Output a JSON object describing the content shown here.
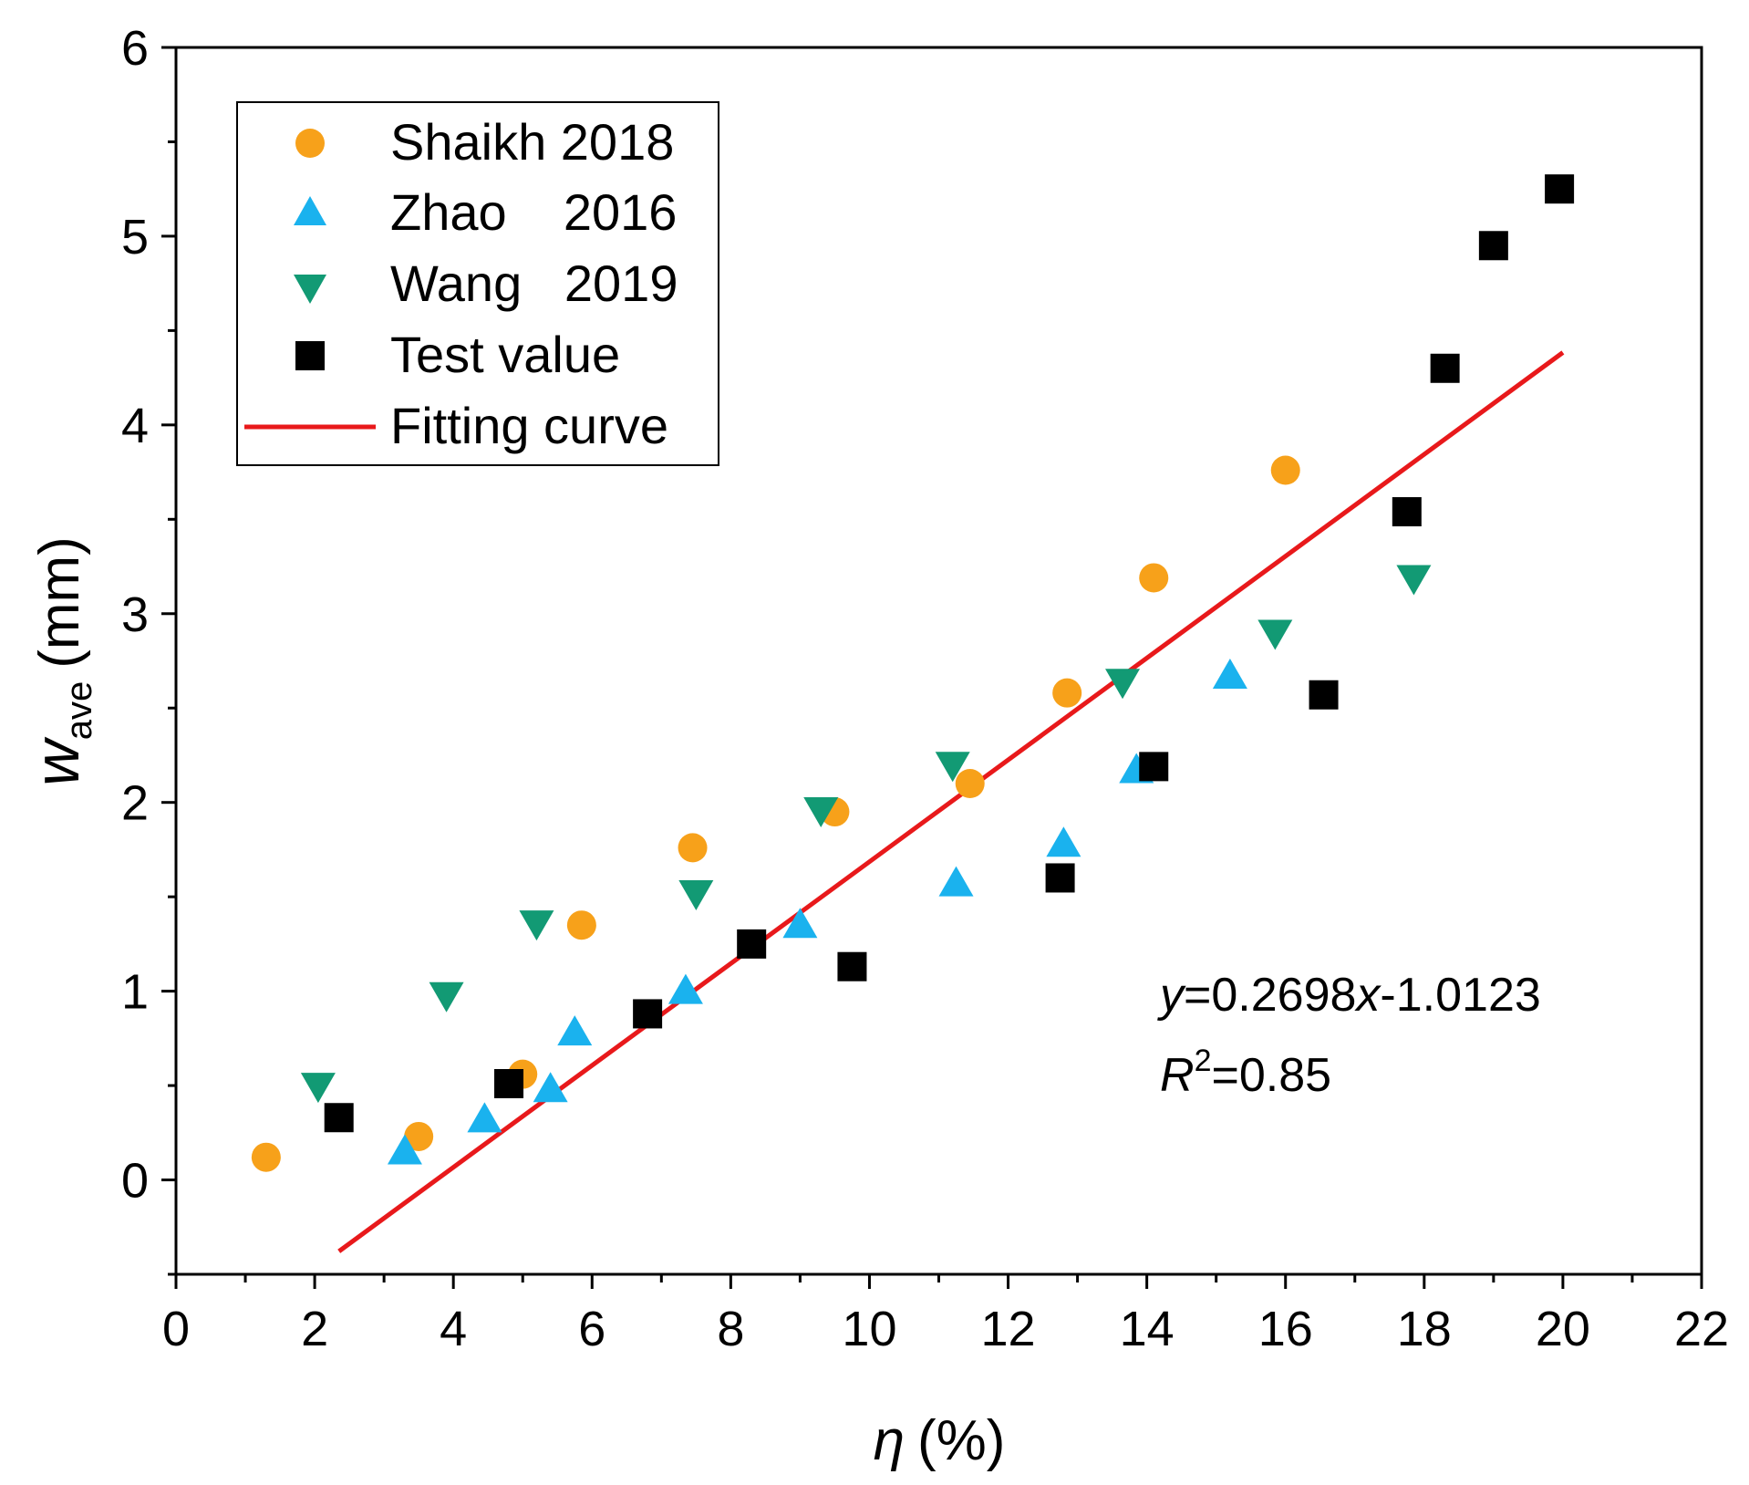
{
  "chart_data": {
    "type": "scatter",
    "xlabel": {
      "symbol": "η",
      "unit": "(%)"
    },
    "ylabel": {
      "symbol": "w",
      "subscript": "ave",
      "unit": "(mm)"
    },
    "xlim": [
      0,
      22
    ],
    "ylim": [
      -0.5,
      6
    ],
    "x_ticks": [
      0,
      2,
      4,
      6,
      8,
      10,
      12,
      14,
      16,
      18,
      20,
      22
    ],
    "y_ticks": [
      0,
      1,
      2,
      3,
      4,
      5,
      6
    ],
    "x_tick_labels": [
      "0",
      "2",
      "4",
      "6",
      "8",
      "10",
      "12",
      "14",
      "16",
      "18",
      "20",
      "22"
    ],
    "y_tick_labels": [
      "0",
      "1",
      "2",
      "3",
      "4",
      "5",
      "6"
    ],
    "legend_position": "top-left",
    "series": [
      {
        "id": "shaikh",
        "name": "Shaikh 2018",
        "marker": "circle",
        "color": "#F7A11A",
        "points": [
          [
            1.3,
            0.12
          ],
          [
            3.5,
            0.23
          ],
          [
            5.0,
            0.56
          ],
          [
            5.85,
            1.35
          ],
          [
            7.45,
            1.76
          ],
          [
            9.5,
            1.95
          ],
          [
            11.45,
            2.1
          ],
          [
            12.85,
            2.58
          ],
          [
            14.1,
            3.19
          ],
          [
            16.0,
            3.76
          ]
        ]
      },
      {
        "id": "zhao",
        "name": "Zhao    2016",
        "marker": "triangle-up",
        "color": "#1AB2EE",
        "points": [
          [
            3.3,
            0.15
          ],
          [
            4.45,
            0.32
          ],
          [
            5.4,
            0.48
          ],
          [
            5.75,
            0.78
          ],
          [
            7.35,
            1.0
          ],
          [
            9.0,
            1.35
          ],
          [
            11.25,
            1.57
          ],
          [
            12.8,
            1.78
          ],
          [
            13.85,
            2.17
          ],
          [
            15.2,
            2.67
          ]
        ]
      },
      {
        "id": "wang",
        "name": "Wang   2019",
        "marker": "triangle-down",
        "color": "#129A74",
        "points": [
          [
            2.05,
            0.5
          ],
          [
            3.9,
            0.98
          ],
          [
            5.2,
            1.36
          ],
          [
            7.5,
            1.52
          ],
          [
            9.3,
            1.96
          ],
          [
            11.2,
            2.2
          ],
          [
            13.65,
            2.64
          ],
          [
            15.85,
            2.9
          ],
          [
            17.85,
            3.19
          ]
        ]
      },
      {
        "id": "test",
        "name": "Test value",
        "marker": "square",
        "color": "#000000",
        "points": [
          [
            2.35,
            0.33
          ],
          [
            4.8,
            0.51
          ],
          [
            6.8,
            0.88
          ],
          [
            8.3,
            1.25
          ],
          [
            9.75,
            1.13
          ],
          [
            12.75,
            1.6
          ],
          [
            14.1,
            2.19
          ],
          [
            16.55,
            2.57
          ],
          [
            17.75,
            3.54
          ],
          [
            18.3,
            4.3
          ],
          [
            19.0,
            4.95
          ],
          [
            19.95,
            5.25
          ]
        ]
      }
    ],
    "fit": {
      "name": "Fitting curve",
      "color": "#E8191B",
      "slope": 0.2698,
      "intercept": -1.0123,
      "x_range": [
        2.35,
        20.0
      ]
    },
    "annotation": {
      "eq_lhs": "y",
      "eq_mid": "=0.2698",
      "eq_var": "x",
      "eq_rhs": "-1.0123",
      "r2_var": "R",
      "r2_sup": "2",
      "r2_val": "=0.85"
    }
  }
}
